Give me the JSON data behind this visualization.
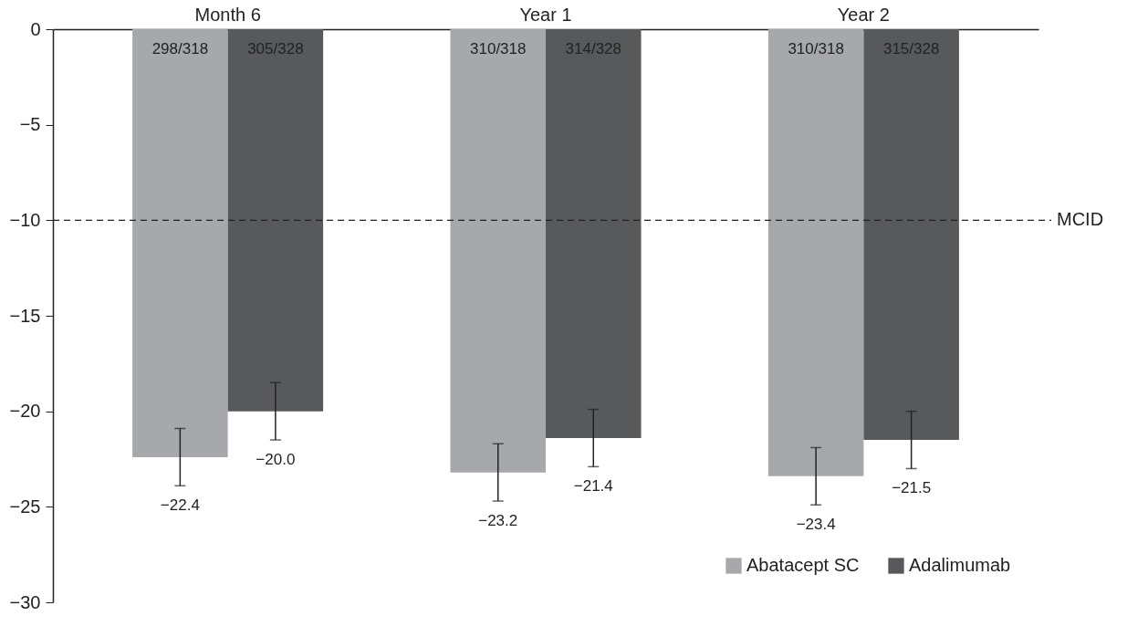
{
  "chart_data": {
    "type": "bar",
    "categories": [
      "Month 6",
      "Year 1",
      "Year 2"
    ],
    "series": [
      {
        "name": "Abatacept SC",
        "color": "#a7a8ab",
        "values": [
          -22.4,
          -23.2,
          -23.4
        ],
        "errors": [
          1.5,
          1.5,
          1.5
        ],
        "value_labels": [
          "−22.4",
          "−23.2",
          "−23.4"
        ]
      },
      {
        "name": "Adalimumab",
        "color": "#58595b",
        "values": [
          -20.0,
          -21.4,
          -21.5
        ],
        "errors": [
          1.5,
          1.5,
          1.5
        ],
        "value_labels": [
          "−20.0",
          "−21.4",
          "−21.5"
        ]
      }
    ],
    "ylim": [
      -30,
      0
    ],
    "yticks": [
      {
        "value": -30,
        "label": "−30"
      },
      {
        "value": -25,
        "label": "−25"
      },
      {
        "value": -20,
        "label": "−20"
      },
      {
        "value": -15,
        "label": "−15"
      },
      {
        "value": -10,
        "label": "−10"
      },
      {
        "value": -5,
        "label": "−5"
      },
      0
    ],
    "ref_lines": [
      {
        "axis": "y",
        "value": -10,
        "label": "MCID",
        "line_style": "dashed"
      }
    ],
    "annotations": [
      {
        "text": "298/318",
        "x": "Month 6",
        "y": 0
      },
      {
        "text": "305/328",
        "x": "Month 6",
        "y": 0
      },
      {
        "text": "310/318",
        "x": "Year 1",
        "y": 0
      },
      {
        "text": "314/328",
        "x": "Year 1",
        "y": 0
      },
      {
        "text": "310/318",
        "x": "Year 2",
        "y": 0
      },
      {
        "text": "315/328",
        "x": "Year 2",
        "y": 0
      }
    ],
    "legend": "bottom right",
    "grid": false
  }
}
